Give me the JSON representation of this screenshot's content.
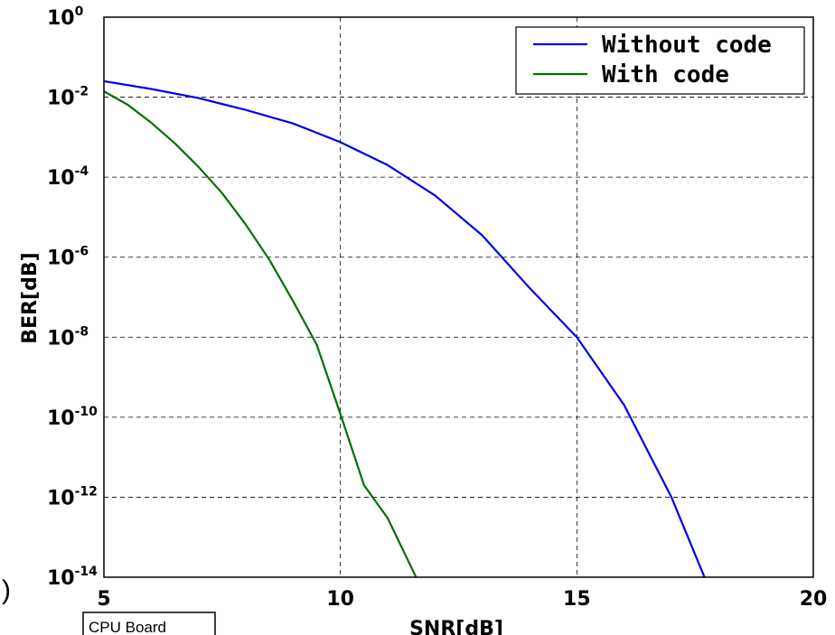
{
  "chart_data": {
    "type": "line",
    "title": "",
    "xlabel": "SNR[dB]",
    "ylabel": "BER[dB]",
    "xlim": [
      5,
      20
    ],
    "ylim_exponent": [
      -14,
      0
    ],
    "yscale": "log",
    "grid": true,
    "legend_position": "top-right",
    "x_ticks": [
      "5",
      "10",
      "15",
      "20"
    ],
    "y_ticks": [
      {
        "base": "10",
        "exp": "0"
      },
      {
        "base": "10",
        "exp": "-2"
      },
      {
        "base": "10",
        "exp": "-4"
      },
      {
        "base": "10",
        "exp": "-6"
      },
      {
        "base": "10",
        "exp": "-8"
      },
      {
        "base": "10",
        "exp": "-10"
      },
      {
        "base": "10",
        "exp": "-12"
      },
      {
        "base": "10",
        "exp": "-14"
      }
    ],
    "series": [
      {
        "name": "Without code",
        "color": "#0000ee",
        "points": [
          [
            5,
            0.025
          ],
          [
            6,
            0.016
          ],
          [
            7,
            0.0095
          ],
          [
            8,
            0.0048
          ],
          [
            9,
            0.0022
          ],
          [
            10,
            0.00075
          ],
          [
            11,
            0.0002
          ],
          [
            12,
            3.5e-05
          ],
          [
            13,
            3.5e-06
          ],
          [
            14,
            1.7e-07
          ],
          [
            15,
            1e-08
          ],
          [
            16,
            2e-10
          ],
          [
            17,
            1e-12
          ],
          [
            17.7,
            1e-14
          ]
        ]
      },
      {
        "name": "With code",
        "color": "#007000",
        "points": [
          [
            5,
            0.014
          ],
          [
            5.5,
            0.0065
          ],
          [
            6,
            0.0023
          ],
          [
            6.5,
            0.0007
          ],
          [
            7,
            0.00018
          ],
          [
            7.5,
            4e-05
          ],
          [
            8,
            6.5e-06
          ],
          [
            8.5,
            8.5e-07
          ],
          [
            9,
            8e-08
          ],
          [
            9.5,
            6.5e-09
          ],
          [
            10,
            1.2e-10
          ],
          [
            10.5,
            2e-12
          ],
          [
            11,
            3e-13
          ],
          [
            11.6,
            1e-14
          ]
        ]
      }
    ]
  },
  "fragments": {
    "board_label": "CPU Board",
    "paren": ")"
  }
}
